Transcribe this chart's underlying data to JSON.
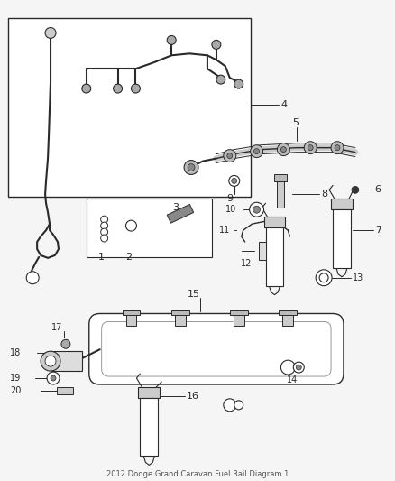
{
  "title": "2012 Dodge Grand Caravan Fuel Rail Diagram 1",
  "bg_color": "#f0f0f0",
  "line_color": "#2a2a2a",
  "fig_width": 4.38,
  "fig_height": 5.33,
  "dpi": 100
}
